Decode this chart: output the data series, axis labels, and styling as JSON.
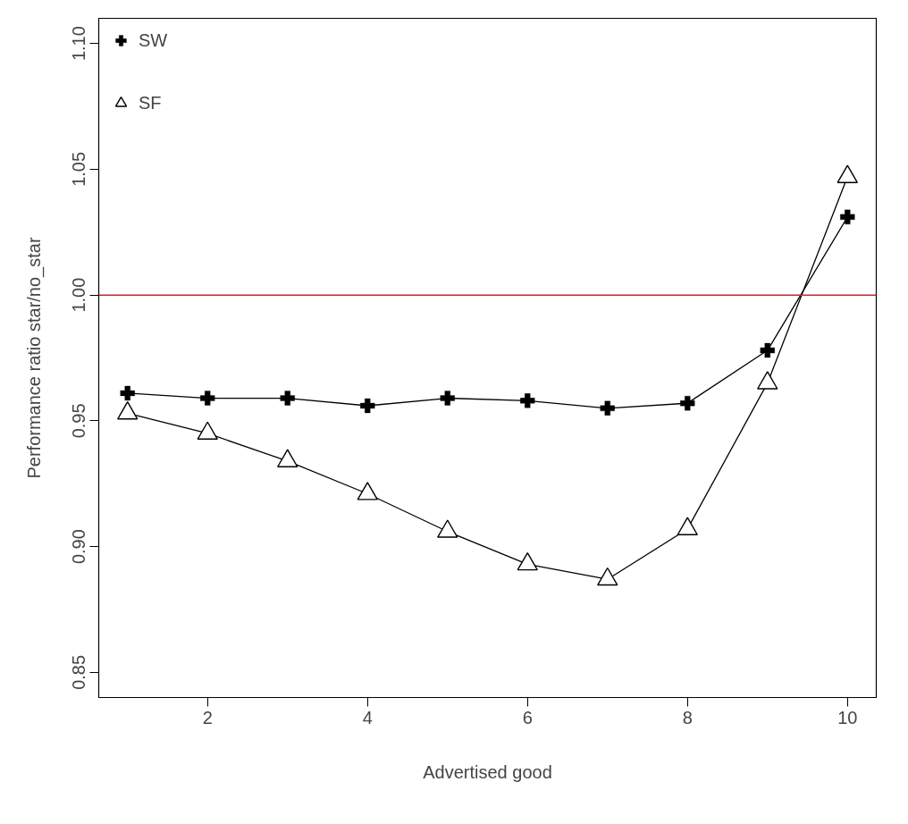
{
  "chart_data": {
    "type": "line",
    "xlabel": "Advertised good",
    "ylabel": "Performance ratio star/no_star",
    "x": [
      1,
      2,
      3,
      4,
      5,
      6,
      7,
      8,
      9,
      10
    ],
    "series": [
      {
        "name": "SW",
        "color": "#000000",
        "marker": "cross",
        "values": [
          0.961,
          0.959,
          0.959,
          0.956,
          0.959,
          0.958,
          0.955,
          0.957,
          0.978,
          1.031
        ]
      },
      {
        "name": "SF",
        "color": "#000000",
        "marker": "triangle",
        "values": [
          0.953,
          0.945,
          0.934,
          0.921,
          0.906,
          0.893,
          0.887,
          0.907,
          0.965,
          1.047
        ]
      }
    ],
    "xlim": [
      0.64,
      10.36
    ],
    "xticks": [
      2,
      4,
      6,
      8,
      10
    ],
    "ylim": [
      0.84,
      1.11
    ],
    "yticks": [
      {
        "value": 0.85,
        "label": "0.85"
      },
      {
        "value": 0.9,
        "label": "0.90"
      },
      {
        "value": 0.95,
        "label": "0.95"
      },
      {
        "value": 1.0,
        "label": "1.00"
      },
      {
        "value": 1.05,
        "label": "1.05"
      },
      {
        "value": 1.1,
        "label": "1.10"
      }
    ],
    "ref_lines": [
      {
        "axis": "y",
        "value": 1.0,
        "color": "#e41a1c"
      }
    ],
    "grid": false,
    "legend": "top left"
  }
}
